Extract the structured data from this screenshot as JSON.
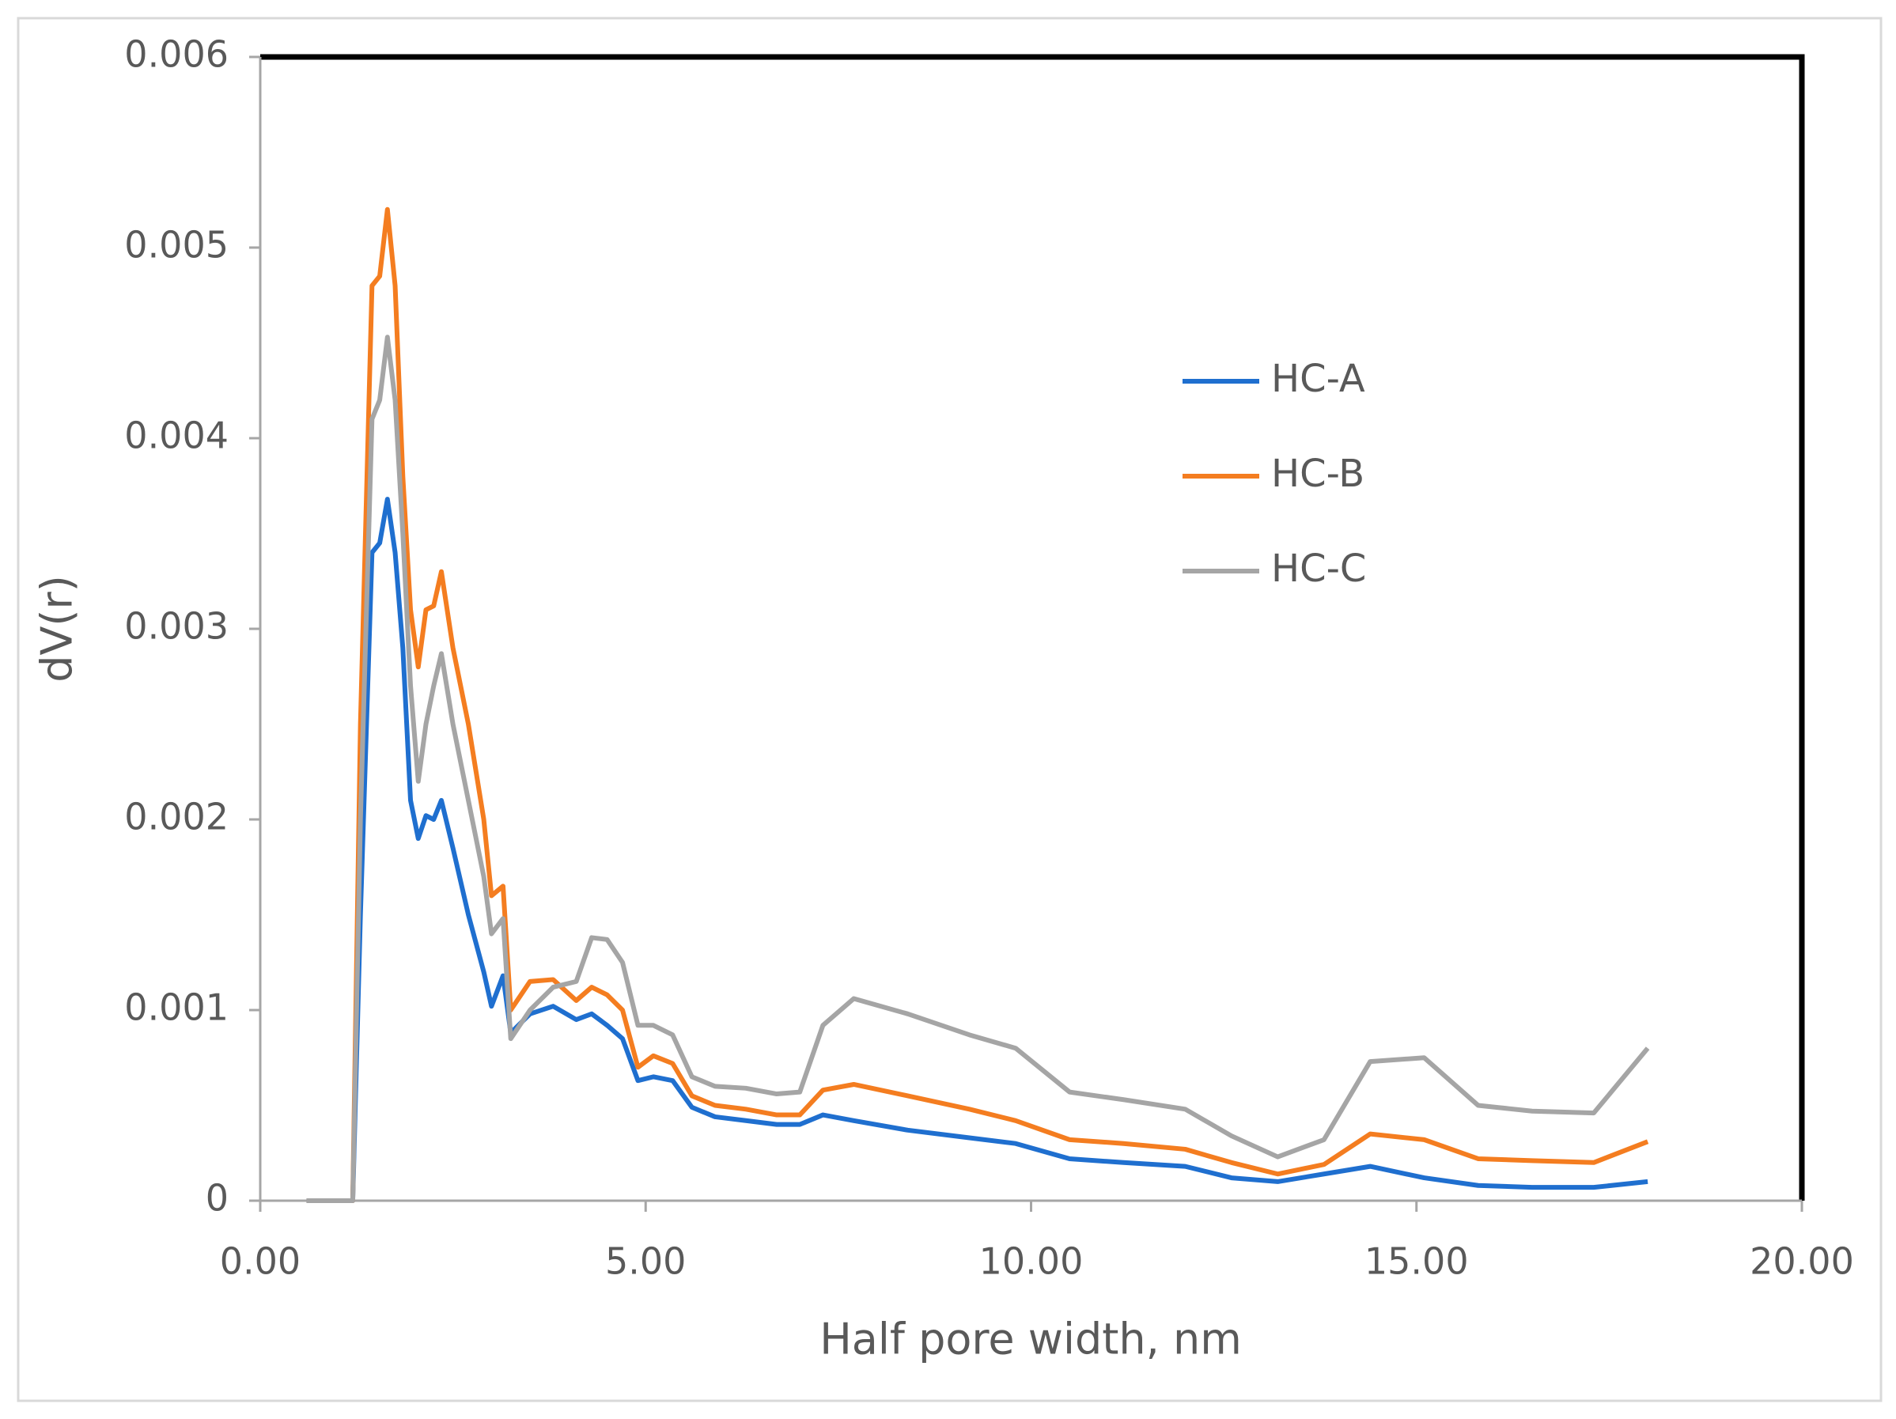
{
  "chart_data": {
    "type": "line",
    "x_label": "Half pore width, nm",
    "y_label": "dV(r)",
    "x": [
      0.6,
      1.2,
      1.3,
      1.45,
      1.55,
      1.65,
      1.75,
      1.85,
      1.95,
      2.05,
      2.15,
      2.25,
      2.35,
      2.5,
      2.7,
      2.9,
      3.0,
      3.15,
      3.25,
      3.5,
      3.8,
      4.1,
      4.3,
      4.5,
      4.7,
      4.9,
      5.1,
      5.35,
      5.6,
      5.9,
      6.3,
      6.7,
      7.0,
      7.3,
      7.7,
      8.4,
      9.2,
      9.8,
      10.5,
      11.2,
      12.0,
      12.6,
      13.2,
      13.8,
      14.4,
      15.1,
      15.8,
      16.5,
      17.3,
      18.0
    ],
    "series": [
      {
        "name": "HC-A",
        "color": "#1f6fcf",
        "values": [
          0,
          0,
          0.0015,
          0.0034,
          0.00345,
          0.00368,
          0.0034,
          0.0029,
          0.0021,
          0.0019,
          0.00202,
          0.002,
          0.0021,
          0.00185,
          0.0015,
          0.0012,
          0.00102,
          0.00118,
          0.00088,
          0.00098,
          0.00102,
          0.00095,
          0.00098,
          0.00092,
          0.00085,
          0.00063,
          0.00065,
          0.00063,
          0.00049,
          0.00044,
          0.00042,
          0.0004,
          0.0004,
          0.00045,
          0.00042,
          0.00037,
          0.00033,
          0.0003,
          0.00022,
          0.0002,
          0.00018,
          0.00012,
          0.0001,
          0.00014,
          0.00018,
          0.00012,
          8e-05,
          7e-05,
          7e-05,
          0.0001
        ]
      },
      {
        "name": "HC-B",
        "color": "#f47d20",
        "values": [
          0,
          0,
          0.0025,
          0.0048,
          0.00485,
          0.0052,
          0.0048,
          0.0038,
          0.0031,
          0.0028,
          0.0031,
          0.00312,
          0.0033,
          0.0029,
          0.0025,
          0.002,
          0.0016,
          0.00165,
          0.001,
          0.00115,
          0.00116,
          0.00105,
          0.00112,
          0.00108,
          0.001,
          0.0007,
          0.00076,
          0.00072,
          0.00055,
          0.0005,
          0.00048,
          0.00045,
          0.00045,
          0.00058,
          0.00061,
          0.00055,
          0.00048,
          0.00042,
          0.00032,
          0.0003,
          0.00027,
          0.0002,
          0.00014,
          0.00019,
          0.00035,
          0.00032,
          0.00022,
          0.00021,
          0.0002,
          0.00031
        ]
      },
      {
        "name": "HC-C",
        "color": "#a5a5a5",
        "values": [
          0,
          0,
          0.002,
          0.0041,
          0.0042,
          0.00453,
          0.0042,
          0.0035,
          0.0027,
          0.0022,
          0.0025,
          0.0027,
          0.00287,
          0.0025,
          0.0021,
          0.0017,
          0.0014,
          0.00148,
          0.00085,
          0.001,
          0.00112,
          0.00115,
          0.00138,
          0.00137,
          0.00125,
          0.00092,
          0.00092,
          0.00087,
          0.00065,
          0.0006,
          0.00059,
          0.00056,
          0.00057,
          0.00092,
          0.00106,
          0.00098,
          0.00087,
          0.0008,
          0.00057,
          0.00053,
          0.00048,
          0.00034,
          0.00023,
          0.00032,
          0.00073,
          0.00075,
          0.0005,
          0.00047,
          0.00046,
          0.0008
        ]
      }
    ],
    "xlim": [
      0,
      20
    ],
    "ylim": [
      0,
      0.006
    ],
    "xticks": [
      {
        "value": 0,
        "label": "0.00"
      },
      {
        "value": 5,
        "label": "5.00"
      },
      {
        "value": 10,
        "label": "10.00"
      },
      {
        "value": 15,
        "label": "15.00"
      },
      {
        "value": 20,
        "label": "20.00"
      }
    ],
    "yticks": [
      0,
      0.001,
      0.002,
      0.003,
      0.004,
      0.005,
      0.006
    ],
    "grid": false
  }
}
